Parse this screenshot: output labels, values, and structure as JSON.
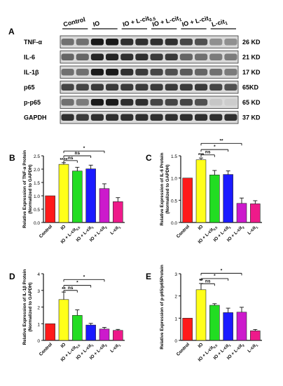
{
  "panels": [
    {
      "letter": "A"
    },
    {
      "letter": "B"
    },
    {
      "letter": "C"
    },
    {
      "letter": "D"
    },
    {
      "letter": "E"
    }
  ],
  "blot": {
    "groups": [
      {
        "main": "Control",
        "sub": ""
      },
      {
        "main": "IO",
        "sub": ""
      },
      {
        "main": "IO + L-cit",
        "sub": "0.5"
      },
      {
        "main": "IO + L-cit",
        "sub": "1"
      },
      {
        "main": "IO + L-cit",
        "sub": "2"
      },
      {
        "main": "L-cit",
        "sub": "1"
      }
    ],
    "rows": [
      {
        "name": "TNF-α",
        "size": "26 KD",
        "intensity": [
          0.55,
          0.55,
          0.95,
          0.95,
          0.85,
          0.85,
          0.85,
          0.85,
          0.75,
          0.7,
          0.4,
          0.4
        ]
      },
      {
        "name": "IL-6",
        "size": "21 KD",
        "intensity": [
          0.6,
          0.6,
          0.9,
          0.9,
          0.85,
          0.85,
          0.8,
          0.8,
          0.6,
          0.55,
          0.5,
          0.5
        ]
      },
      {
        "name": "IL-1β",
        "size": "17 KD",
        "intensity": [
          0.55,
          0.55,
          0.95,
          0.95,
          0.85,
          0.8,
          0.75,
          0.7,
          0.65,
          0.6,
          0.55,
          0.5
        ]
      },
      {
        "name": "p65",
        "size": "65KD",
        "intensity": [
          0.75,
          0.75,
          0.8,
          0.8,
          0.8,
          0.8,
          0.8,
          0.8,
          0.8,
          0.8,
          0.75,
          0.7
        ]
      },
      {
        "name": "p-p65",
        "size": "65 KD",
        "intensity": [
          0.55,
          0.5,
          0.95,
          0.95,
          0.85,
          0.85,
          0.75,
          0.75,
          0.75,
          0.7,
          0.15,
          0.12
        ]
      },
      {
        "name": "GAPDH",
        "size": "37 KD",
        "intensity": [
          0.85,
          0.8,
          0.85,
          0.85,
          0.85,
          0.85,
          0.85,
          0.85,
          0.85,
          0.85,
          0.85,
          0.85
        ]
      }
    ]
  },
  "chart_data": [
    {
      "type": "bar",
      "panel": "B",
      "ylabel_line1": "Relative Expression of TNF-α Protein",
      "ylabel_line2": "(Normalized to GAPDH)",
      "ylim": [
        0,
        2.5
      ],
      "yticks": [
        "0.0",
        "0.5",
        "1.0",
        "1.5",
        "2.0",
        "2.5"
      ],
      "categories": [
        {
          "main": "Control",
          "sub": ""
        },
        {
          "main": "IO",
          "sub": ""
        },
        {
          "main": "IO + L-cit",
          "sub": "0.5"
        },
        {
          "main": "IO + L-cit",
          "sub": "1"
        },
        {
          "main": "IO + L-cit",
          "sub": "2"
        },
        {
          "main": "L-cit",
          "sub": "1"
        }
      ],
      "values": [
        1.0,
        2.18,
        1.93,
        2.01,
        1.27,
        0.78
      ],
      "errors": [
        0.0,
        0.06,
        0.14,
        0.14,
        0.18,
        0.15
      ],
      "colors": [
        "#ff1a1a",
        "#ffff1a",
        "#22dd22",
        "#1a1aff",
        "#cc1acc",
        "#ee1a8a"
      ],
      "significance_on_bar": [
        {
          "index": 1,
          "text": "****"
        }
      ],
      "brackets": [
        {
          "from": 1,
          "to": 2,
          "text": "ns",
          "y": 2.32
        },
        {
          "from": 1,
          "to": 3,
          "text": "ns",
          "y": 2.5
        },
        {
          "from": 1,
          "to": 4,
          "text": "*",
          "y": 2.68
        }
      ]
    },
    {
      "type": "bar",
      "panel": "C",
      "ylabel_line1": "Relative Expression of IL-6 Protein",
      "ylabel_line2": "(Normalized to GAPDH)",
      "ylim": [
        0,
        1.5
      ],
      "yticks": [
        "0.0",
        "0.5",
        "1.0",
        "1.5"
      ],
      "categories": [
        {
          "main": "Control",
          "sub": ""
        },
        {
          "main": "IO",
          "sub": ""
        },
        {
          "main": "IO + L-cit",
          "sub": "0.5"
        },
        {
          "main": "IO + L-cit",
          "sub": "1"
        },
        {
          "main": "IO + L-cit",
          "sub": "2"
        },
        {
          "main": "L-cit",
          "sub": "1"
        }
      ],
      "values": [
        1.0,
        1.41,
        1.07,
        1.08,
        0.43,
        0.42
      ],
      "errors": [
        0.0,
        0.04,
        0.1,
        0.08,
        0.12,
        0.07
      ],
      "colors": [
        "#ff1a1a",
        "#ffff1a",
        "#22dd22",
        "#1a1aff",
        "#cc1acc",
        "#ee1a8a"
      ],
      "significance_on_bar": [
        {
          "index": 1,
          "text": "***"
        }
      ],
      "brackets": [
        {
          "from": 1,
          "to": 2,
          "text": "ns",
          "y": 1.52
        },
        {
          "from": 1,
          "to": 3,
          "text": "*",
          "y": 1.64
        },
        {
          "from": 1,
          "to": 4,
          "text": "**",
          "y": 1.78
        }
      ]
    },
    {
      "type": "bar",
      "panel": "D",
      "ylabel_line1": "Relative Expression of IL-1β Protein",
      "ylabel_line2": "(Normalized to GAPDH)",
      "ylim": [
        0,
        4
      ],
      "yticks": [
        "0",
        "1",
        "2",
        "3",
        "4"
      ],
      "categories": [
        {
          "main": "Control",
          "sub": ""
        },
        {
          "main": "IO",
          "sub": ""
        },
        {
          "main": "IO + L-cit",
          "sub": "0.5"
        },
        {
          "main": "IO + L-cit",
          "sub": "1"
        },
        {
          "main": "IO + L-cit",
          "sub": "2"
        },
        {
          "main": "L-cit",
          "sub": "1"
        }
      ],
      "values": [
        1.0,
        2.45,
        1.5,
        0.92,
        0.68,
        0.6
      ],
      "errors": [
        0.0,
        0.45,
        0.33,
        0.1,
        0.1,
        0.06
      ],
      "colors": [
        "#ff1a1a",
        "#ffff1a",
        "#22dd22",
        "#1a1aff",
        "#cc1acc",
        "#ee1a8a"
      ],
      "significance_on_bar": [
        {
          "index": 1,
          "text": "**"
        }
      ],
      "brackets": [
        {
          "from": 1,
          "to": 2,
          "text": "ns",
          "y": 3.0
        },
        {
          "from": 1,
          "to": 3,
          "text": "*",
          "y": 3.3
        },
        {
          "from": 1,
          "to": 4,
          "text": "*",
          "y": 3.65
        }
      ]
    },
    {
      "type": "bar",
      "panel": "E",
      "ylabel_line1": "Relative Expression of p-p65/p65Protein",
      "ylabel_line2": "",
      "ylim": [
        0,
        3
      ],
      "yticks": [
        "0",
        "1",
        "2",
        "3"
      ],
      "categories": [
        {
          "main": "Control",
          "sub": ""
        },
        {
          "main": "IO",
          "sub": ""
        },
        {
          "main": "IO + L-cit",
          "sub": "0.5"
        },
        {
          "main": "IO + L-cit",
          "sub": "1"
        },
        {
          "main": "IO + L-cit",
          "sub": "2"
        },
        {
          "main": "L-cit",
          "sub": "1"
        }
      ],
      "values": [
        1.0,
        2.28,
        1.58,
        1.25,
        1.27,
        0.43
      ],
      "errors": [
        0.0,
        0.28,
        0.07,
        0.2,
        0.22,
        0.06
      ],
      "colors": [
        "#ff1a1a",
        "#ffff1a",
        "#22dd22",
        "#1a1aff",
        "#cc1acc",
        "#ee1a8a"
      ],
      "significance_on_bar": [
        {
          "index": 1,
          "text": "**"
        }
      ],
      "brackets": [
        {
          "from": 1,
          "to": 2,
          "text": "ns",
          "y": 2.55
        },
        {
          "from": 1,
          "to": 3,
          "text": "*",
          "y": 2.78
        },
        {
          "from": 1,
          "to": 4,
          "text": "*",
          "y": 3.02
        }
      ]
    }
  ]
}
